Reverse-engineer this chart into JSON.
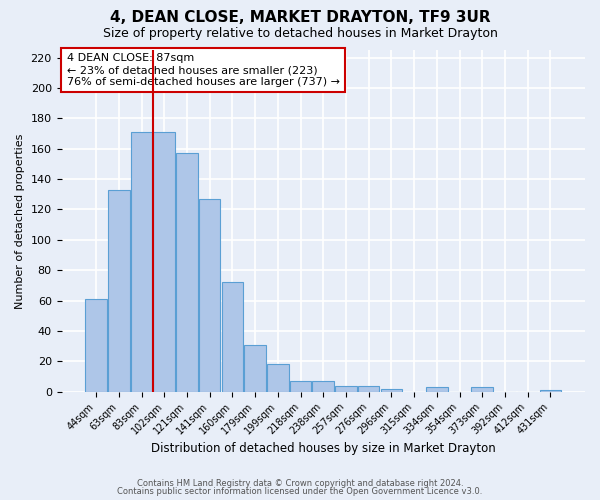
{
  "title": "4, DEAN CLOSE, MARKET DRAYTON, TF9 3UR",
  "subtitle": "Size of property relative to detached houses in Market Drayton",
  "xlabel": "Distribution of detached houses by size in Market Drayton",
  "ylabel": "Number of detached properties",
  "footer_line1": "Contains HM Land Registry data © Crown copyright and database right 2024.",
  "footer_line2": "Contains public sector information licensed under the Open Government Licence v3.0.",
  "bar_labels": [
    "44sqm",
    "63sqm",
    "83sqm",
    "102sqm",
    "121sqm",
    "141sqm",
    "160sqm",
    "179sqm",
    "199sqm",
    "218sqm",
    "238sqm",
    "257sqm",
    "276sqm",
    "296sqm",
    "315sqm",
    "334sqm",
    "354sqm",
    "373sqm",
    "392sqm",
    "412sqm",
    "431sqm"
  ],
  "bar_heights": [
    61,
    133,
    171,
    171,
    157,
    127,
    72,
    31,
    18,
    7,
    7,
    4,
    4,
    2,
    0,
    3,
    0,
    3,
    0,
    0,
    1
  ],
  "bar_color": "#aec6e8",
  "bar_edge_color": "#5a9fd4",
  "vline_color": "#cc0000",
  "annotation_title": "4 DEAN CLOSE: 87sqm",
  "annotation_line2": "← 23% of detached houses are smaller (223)",
  "annotation_line3": "76% of semi-detached houses are larger (737) →",
  "annotation_box_color": "#ffffff",
  "annotation_box_edge": "#cc0000",
  "ylim": [
    0,
    225
  ],
  "yticks": [
    0,
    20,
    40,
    60,
    80,
    100,
    120,
    140,
    160,
    180,
    200,
    220
  ],
  "background_color": "#e8eef8",
  "grid_color": "#ffffff",
  "title_fontsize": 11,
  "subtitle_fontsize": 9
}
